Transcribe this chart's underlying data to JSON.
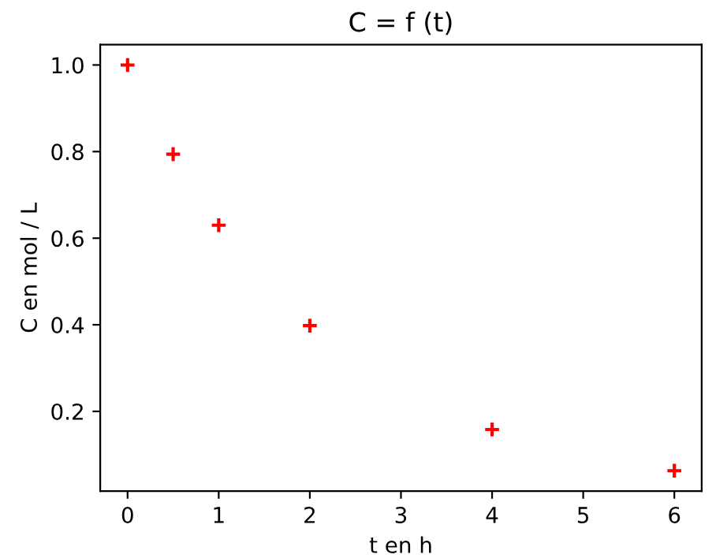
{
  "chart_data": {
    "type": "scatter",
    "title": "C = f (t)",
    "xlabel": "t en h",
    "ylabel": "C en mol / L",
    "x": [
      0,
      0.5,
      1,
      2,
      4,
      6
    ],
    "series": [
      {
        "color": "#ff0000",
        "values": [
          1.0,
          0.794,
          0.63,
          0.398,
          0.158,
          0.063
        ]
      }
    ],
    "marker": "cross",
    "xlim": [
      -0.3,
      6.3
    ],
    "xticks": [
      0,
      1,
      2,
      3,
      4,
      5,
      6
    ],
    "ylim": [
      0.016,
      1.047
    ],
    "yticks": [
      0.2,
      0.4,
      0.6,
      0.8,
      {
        "value": 1.0,
        "label": "1.0"
      }
    ],
    "grid": false,
    "legend": false
  }
}
